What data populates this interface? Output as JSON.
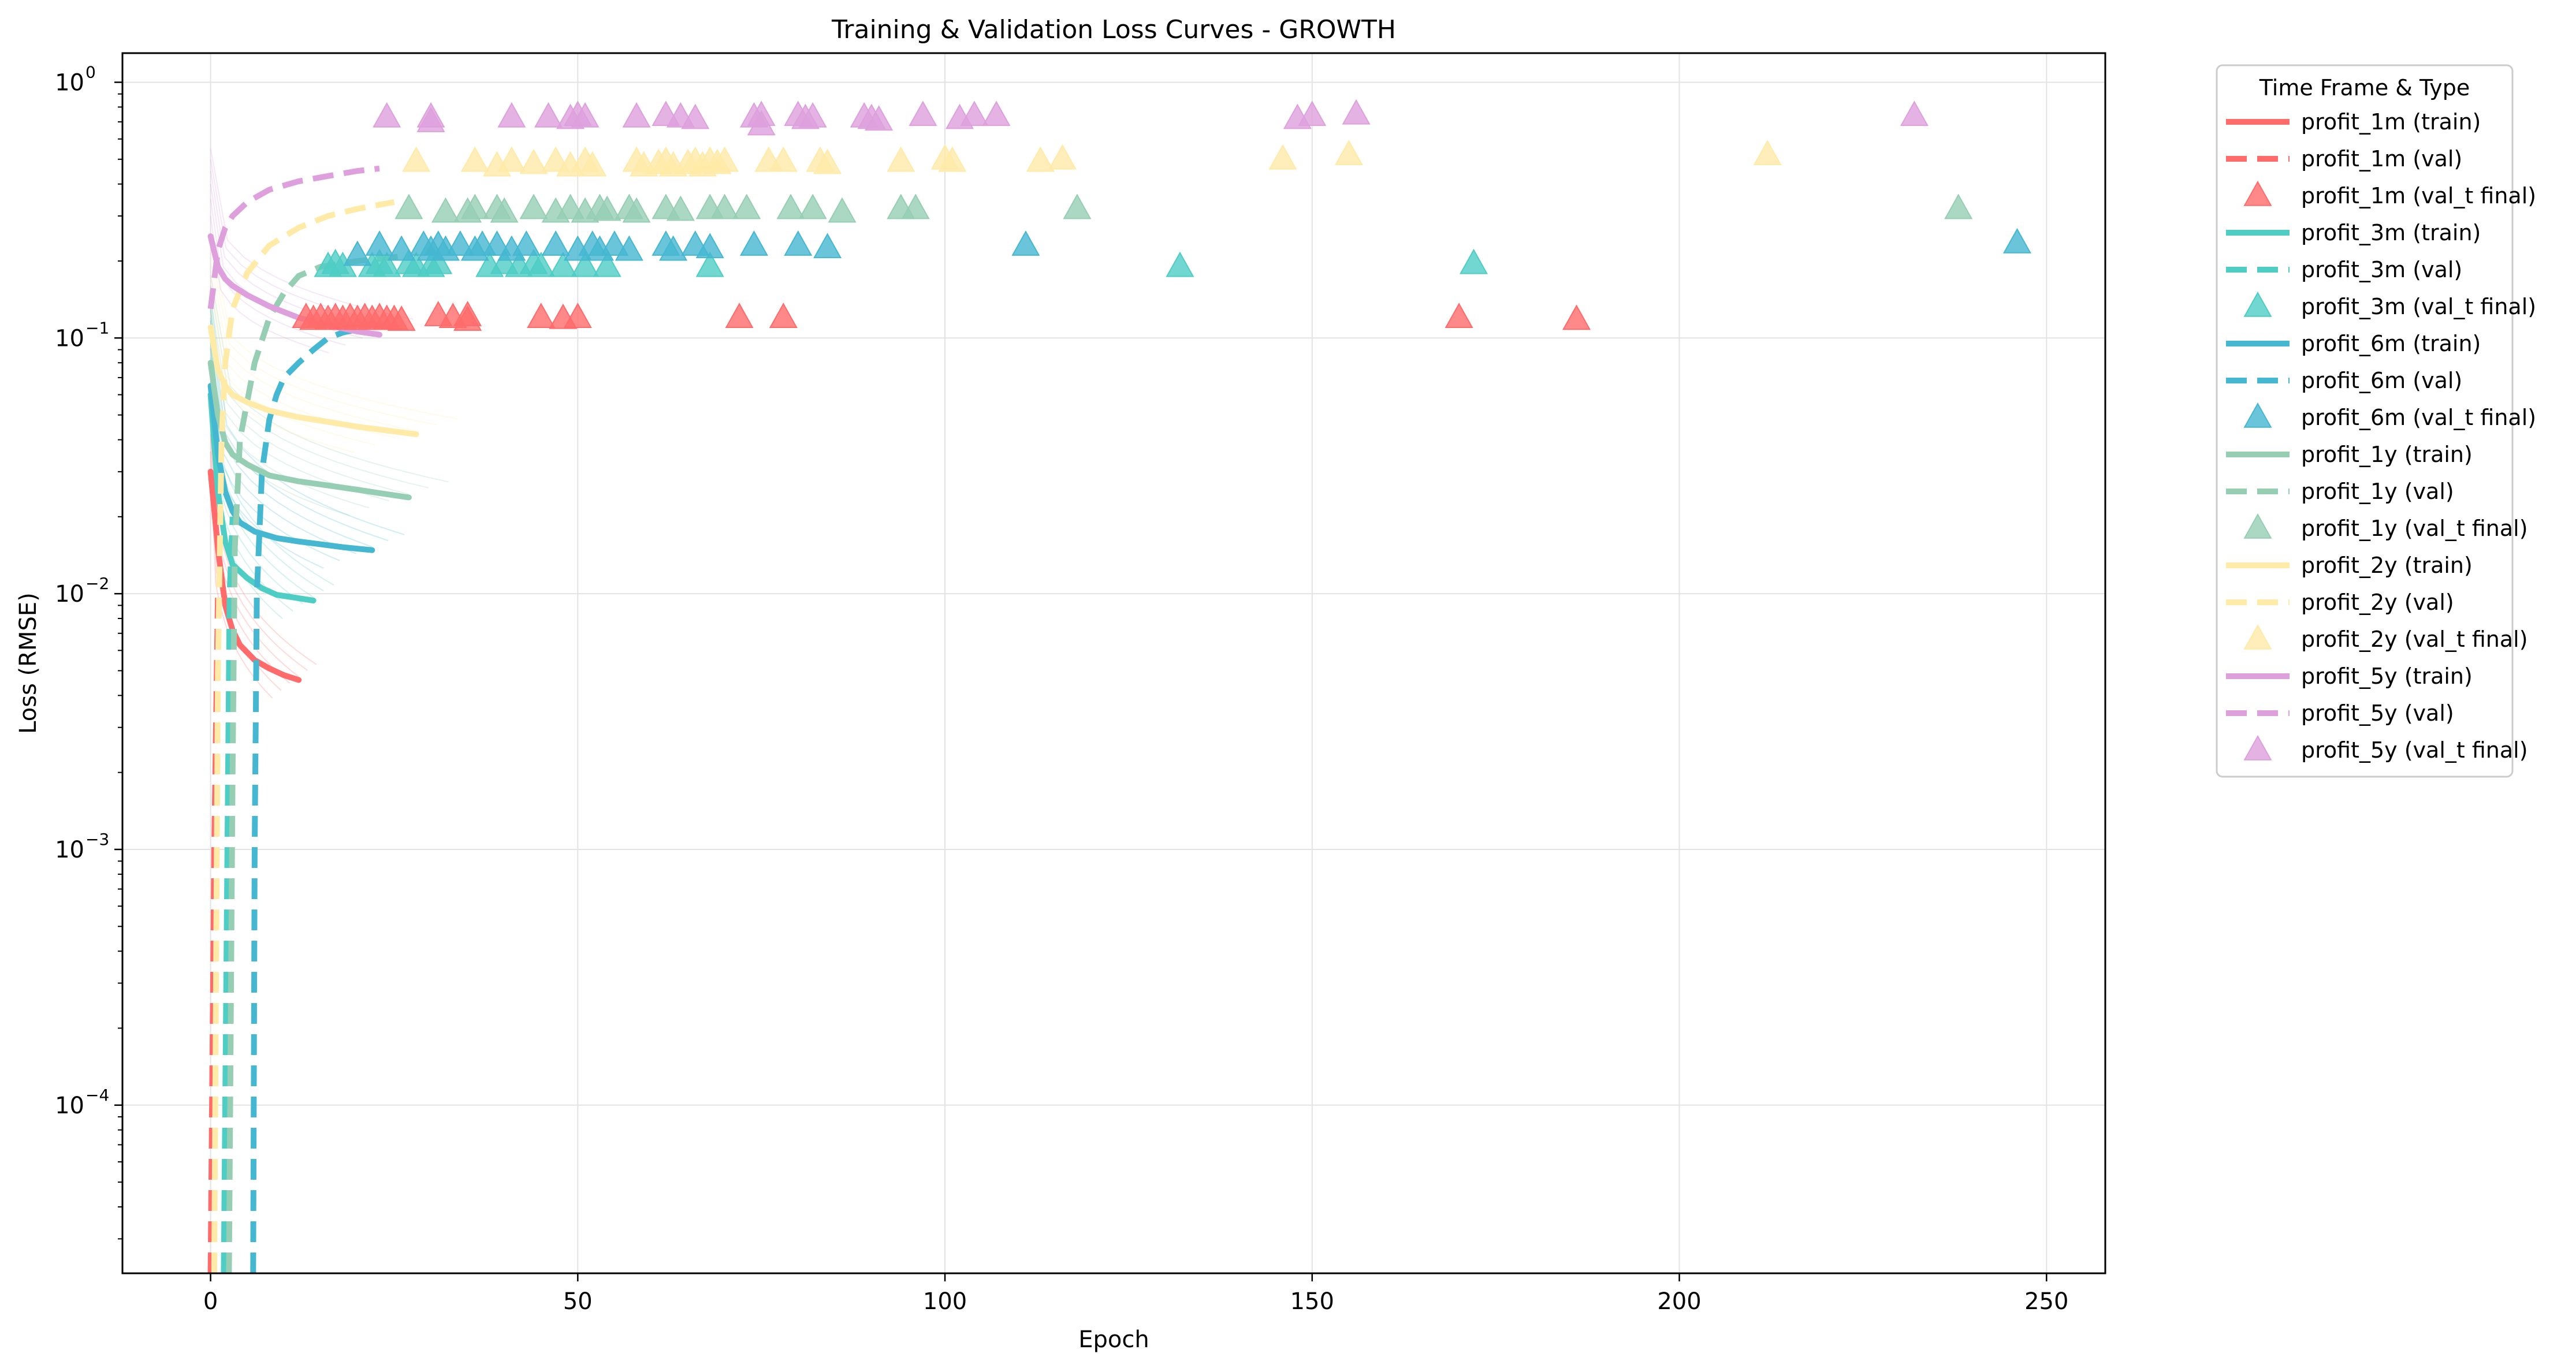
{
  "chart_data": {
    "type": "line",
    "title": "Training & Validation Loss Curves - GROWTH",
    "xlabel": "Epoch",
    "ylabel": "Loss (RMSE)",
    "xlim": [
      -12,
      258
    ],
    "ylim": [
      2.2e-05,
      1.3
    ],
    "yscale": "log",
    "grid": true,
    "x_ticks": [
      {
        "value": 0,
        "label": "0"
      },
      {
        "value": 50,
        "label": "50"
      },
      {
        "value": 100,
        "label": "100"
      },
      {
        "value": 150,
        "label": "150"
      },
      {
        "value": 200,
        "label": "200"
      },
      {
        "value": 250,
        "label": "250"
      }
    ],
    "y_ticks": [
      {
        "value": 0.0001,
        "base": "10",
        "exp": "−4"
      },
      {
        "value": 0.001,
        "base": "10",
        "exp": "−3"
      },
      {
        "value": 0.01,
        "base": "10",
        "exp": "−2"
      },
      {
        "value": 0.1,
        "base": "10",
        "exp": "−1"
      },
      {
        "value": 1,
        "base": "10",
        "exp": "0"
      }
    ],
    "legend": {
      "title": "Time Frame & Type",
      "placement": "outside-right-top",
      "entries": [
        {
          "label": "profit_1m (train)",
          "kind": "line",
          "color": "#ff6b6b"
        },
        {
          "label": "profit_1m (val)",
          "kind": "dash",
          "color": "#ff6b6b"
        },
        {
          "label": "profit_1m (val_t final)",
          "kind": "marker",
          "color": "#ff6b6b"
        },
        {
          "label": "profit_3m (train)",
          "kind": "line",
          "color": "#4ecdc4"
        },
        {
          "label": "profit_3m (val)",
          "kind": "dash",
          "color": "#4ecdc4"
        },
        {
          "label": "profit_3m (val_t final)",
          "kind": "marker",
          "color": "#4ecdc4"
        },
        {
          "label": "profit_6m (train)",
          "kind": "line",
          "color": "#45b7d1"
        },
        {
          "label": "profit_6m (val)",
          "kind": "dash",
          "color": "#45b7d1"
        },
        {
          "label": "profit_6m (val_t final)",
          "kind": "marker",
          "color": "#45b7d1"
        },
        {
          "label": "profit_1y (train)",
          "kind": "line",
          "color": "#96ceb4"
        },
        {
          "label": "profit_1y (val)",
          "kind": "dash",
          "color": "#96ceb4"
        },
        {
          "label": "profit_1y (val_t final)",
          "kind": "marker",
          "color": "#96ceb4"
        },
        {
          "label": "profit_2y (train)",
          "kind": "line",
          "color": "#ffeaa7"
        },
        {
          "label": "profit_2y (val)",
          "kind": "dash",
          "color": "#ffeaa7"
        },
        {
          "label": "profit_2y (val_t final)",
          "kind": "marker",
          "color": "#ffeaa7"
        },
        {
          "label": "profit_5y (train)",
          "kind": "line",
          "color": "#dda0dd"
        },
        {
          "label": "profit_5y (val)",
          "kind": "dash",
          "color": "#dda0dd"
        },
        {
          "label": "profit_5y (val_t final)",
          "kind": "marker",
          "color": "#dda0dd"
        }
      ]
    },
    "series": [
      {
        "id": "profit_1m",
        "color": "#ff6b6b",
        "train": {
          "x": [
            0,
            1,
            2,
            3,
            4,
            6,
            8,
            10,
            12
          ],
          "y": [
            0.03,
            0.015,
            0.009,
            0.0072,
            0.0063,
            0.0055,
            0.0051,
            0.0048,
            0.0046
          ]
        },
        "val": {
          "x": [
            0,
            0.5,
            1
          ],
          "y": [
            2.2e-05,
            0.001,
            0.01
          ]
        },
        "val_final": [
          {
            "x": 13,
            "y": 0.12
          },
          {
            "x": 14,
            "y": 0.118
          },
          {
            "x": 15,
            "y": 0.12
          },
          {
            "x": 16,
            "y": 0.118
          },
          {
            "x": 17,
            "y": 0.12
          },
          {
            "x": 18,
            "y": 0.118
          },
          {
            "x": 19,
            "y": 0.12
          },
          {
            "x": 20,
            "y": 0.118
          },
          {
            "x": 21,
            "y": 0.12
          },
          {
            "x": 22,
            "y": 0.118
          },
          {
            "x": 23,
            "y": 0.12
          },
          {
            "x": 24,
            "y": 0.118
          },
          {
            "x": 25,
            "y": 0.118
          },
          {
            "x": 26,
            "y": 0.117
          },
          {
            "x": 31,
            "y": 0.122
          },
          {
            "x": 33,
            "y": 0.12
          },
          {
            "x": 35,
            "y": 0.122
          },
          {
            "x": 35,
            "y": 0.117
          },
          {
            "x": 45,
            "y": 0.12
          },
          {
            "x": 48,
            "y": 0.119
          },
          {
            "x": 50,
            "y": 0.12
          },
          {
            "x": 72,
            "y": 0.12
          },
          {
            "x": 78,
            "y": 0.12
          },
          {
            "x": 170,
            "y": 0.12
          },
          {
            "x": 186,
            "y": 0.118
          }
        ]
      },
      {
        "id": "profit_3m",
        "color": "#4ecdc4",
        "train": {
          "x": [
            0,
            1,
            2,
            3,
            5,
            7,
            9,
            11,
            14
          ],
          "y": [
            0.06,
            0.025,
            0.016,
            0.013,
            0.0115,
            0.0105,
            0.0099,
            0.0097,
            0.0094
          ]
        },
        "val": {
          "x": [
            1.8,
            2.2,
            2.6,
            3
          ],
          "y": [
            2.2e-05,
            0.0005,
            0.01,
            0.02
          ]
        },
        "val_final": [
          {
            "x": 16,
            "y": 0.19
          },
          {
            "x": 17,
            "y": 0.195
          },
          {
            "x": 18,
            "y": 0.19
          },
          {
            "x": 22,
            "y": 0.19
          },
          {
            "x": 23,
            "y": 0.195
          },
          {
            "x": 24,
            "y": 0.19
          },
          {
            "x": 27,
            "y": 0.195
          },
          {
            "x": 28,
            "y": 0.19
          },
          {
            "x": 30,
            "y": 0.19
          },
          {
            "x": 31,
            "y": 0.195
          },
          {
            "x": 38,
            "y": 0.19
          },
          {
            "x": 40,
            "y": 0.195
          },
          {
            "x": 42,
            "y": 0.19
          },
          {
            "x": 44,
            "y": 0.195
          },
          {
            "x": 45,
            "y": 0.19
          },
          {
            "x": 48,
            "y": 0.19
          },
          {
            "x": 51,
            "y": 0.19
          },
          {
            "x": 54,
            "y": 0.19
          },
          {
            "x": 68,
            "y": 0.19
          },
          {
            "x": 132,
            "y": 0.19
          },
          {
            "x": 172,
            "y": 0.195
          }
        ]
      },
      {
        "id": "profit_6m",
        "color": "#45b7d1",
        "train": {
          "x": [
            0,
            1,
            2,
            3,
            4,
            6,
            9,
            12,
            15,
            18,
            22
          ],
          "y": [
            0.065,
            0.035,
            0.025,
            0.021,
            0.019,
            0.0175,
            0.0165,
            0.016,
            0.0156,
            0.0152,
            0.0148
          ]
        },
        "val": {
          "x": [
            5.8,
            6,
            6.3,
            7,
            8,
            9,
            10,
            12,
            14,
            16,
            18,
            20
          ],
          "y": [
            2.2e-05,
            0.001,
            0.01,
            0.03,
            0.048,
            0.06,
            0.07,
            0.08,
            0.09,
            0.1,
            0.105,
            0.108
          ]
        },
        "val_final": [
          {
            "x": 20,
            "y": 0.21
          },
          {
            "x": 23,
            "y": 0.23
          },
          {
            "x": 26,
            "y": 0.22
          },
          {
            "x": 29,
            "y": 0.23
          },
          {
            "x": 30,
            "y": 0.22
          },
          {
            "x": 31,
            "y": 0.23
          },
          {
            "x": 32,
            "y": 0.22
          },
          {
            "x": 34,
            "y": 0.23
          },
          {
            "x": 36,
            "y": 0.22
          },
          {
            "x": 37,
            "y": 0.23
          },
          {
            "x": 39,
            "y": 0.23
          },
          {
            "x": 41,
            "y": 0.22
          },
          {
            "x": 43,
            "y": 0.23
          },
          {
            "x": 47,
            "y": 0.23
          },
          {
            "x": 50,
            "y": 0.22
          },
          {
            "x": 52,
            "y": 0.23
          },
          {
            "x": 53,
            "y": 0.22
          },
          {
            "x": 55,
            "y": 0.23
          },
          {
            "x": 57,
            "y": 0.22
          },
          {
            "x": 62,
            "y": 0.23
          },
          {
            "x": 63,
            "y": 0.22
          },
          {
            "x": 66,
            "y": 0.23
          },
          {
            "x": 68,
            "y": 0.225
          },
          {
            "x": 74,
            "y": 0.23
          },
          {
            "x": 80,
            "y": 0.23
          },
          {
            "x": 84,
            "y": 0.225
          },
          {
            "x": 111,
            "y": 0.23
          },
          {
            "x": 246,
            "y": 0.235
          }
        ]
      },
      {
        "id": "profit_1y",
        "color": "#96ceb4",
        "train": {
          "x": [
            0,
            1,
            2,
            3,
            5,
            8,
            12,
            16,
            20,
            24,
            27
          ],
          "y": [
            0.08,
            0.05,
            0.039,
            0.035,
            0.032,
            0.029,
            0.0275,
            0.0265,
            0.0255,
            0.0245,
            0.0238
          ]
        },
        "val": {
          "x": [
            2.5,
            3,
            3.3,
            4,
            6,
            8,
            10,
            12,
            15,
            20,
            27
          ],
          "y": [
            2.2e-05,
            0.002,
            0.015,
            0.04,
            0.08,
            0.12,
            0.15,
            0.175,
            0.19,
            0.2,
            0.21
          ]
        },
        "val_final": [
          {
            "x": 27,
            "y": 0.32
          },
          {
            "x": 32,
            "y": 0.31
          },
          {
            "x": 35,
            "y": 0.31
          },
          {
            "x": 36,
            "y": 0.32
          },
          {
            "x": 39,
            "y": 0.32
          },
          {
            "x": 40,
            "y": 0.31
          },
          {
            "x": 44,
            "y": 0.32
          },
          {
            "x": 47,
            "y": 0.31
          },
          {
            "x": 49,
            "y": 0.32
          },
          {
            "x": 51,
            "y": 0.31
          },
          {
            "x": 53,
            "y": 0.32
          },
          {
            "x": 54,
            "y": 0.315
          },
          {
            "x": 57,
            "y": 0.32
          },
          {
            "x": 58,
            "y": 0.31
          },
          {
            "x": 62,
            "y": 0.32
          },
          {
            "x": 64,
            "y": 0.315
          },
          {
            "x": 68,
            "y": 0.32
          },
          {
            "x": 70,
            "y": 0.32
          },
          {
            "x": 73,
            "y": 0.32
          },
          {
            "x": 79,
            "y": 0.32
          },
          {
            "x": 82,
            "y": 0.32
          },
          {
            "x": 86,
            "y": 0.31
          },
          {
            "x": 94,
            "y": 0.32
          },
          {
            "x": 96,
            "y": 0.32
          },
          {
            "x": 118,
            "y": 0.32
          },
          {
            "x": 238,
            "y": 0.32
          }
        ]
      },
      {
        "id": "profit_2y",
        "color": "#ffeaa7",
        "train": {
          "x": [
            0,
            1,
            2,
            3,
            5,
            8,
            12,
            16,
            20,
            24,
            28
          ],
          "y": [
            0.11,
            0.075,
            0.065,
            0.06,
            0.056,
            0.052,
            0.049,
            0.047,
            0.045,
            0.0435,
            0.042
          ]
        },
        "val": {
          "x": [
            0.5,
            1,
            1.5,
            2,
            3,
            5,
            8,
            12,
            16,
            20,
            25
          ],
          "y": [
            2.2e-05,
            0.005,
            0.04,
            0.08,
            0.13,
            0.18,
            0.23,
            0.27,
            0.3,
            0.32,
            0.34
          ]
        },
        "val_final": [
          {
            "x": 28,
            "y": 0.49
          },
          {
            "x": 36,
            "y": 0.49
          },
          {
            "x": 39,
            "y": 0.47
          },
          {
            "x": 41,
            "y": 0.49
          },
          {
            "x": 44,
            "y": 0.48
          },
          {
            "x": 47,
            "y": 0.49
          },
          {
            "x": 49,
            "y": 0.47
          },
          {
            "x": 51,
            "y": 0.49
          },
          {
            "x": 52,
            "y": 0.47
          },
          {
            "x": 58,
            "y": 0.49
          },
          {
            "x": 59,
            "y": 0.47
          },
          {
            "x": 61,
            "y": 0.48
          },
          {
            "x": 62,
            "y": 0.49
          },
          {
            "x": 63,
            "y": 0.47
          },
          {
            "x": 65,
            "y": 0.48
          },
          {
            "x": 66,
            "y": 0.49
          },
          {
            "x": 67,
            "y": 0.47
          },
          {
            "x": 68,
            "y": 0.49
          },
          {
            "x": 69,
            "y": 0.48
          },
          {
            "x": 70,
            "y": 0.49
          },
          {
            "x": 76,
            "y": 0.49
          },
          {
            "x": 78,
            "y": 0.49
          },
          {
            "x": 83,
            "y": 0.49
          },
          {
            "x": 84,
            "y": 0.48
          },
          {
            "x": 94,
            "y": 0.49
          },
          {
            "x": 100,
            "y": 0.5
          },
          {
            "x": 101,
            "y": 0.49
          },
          {
            "x": 113,
            "y": 0.49
          },
          {
            "x": 116,
            "y": 0.5
          },
          {
            "x": 146,
            "y": 0.5
          },
          {
            "x": 155,
            "y": 0.52
          },
          {
            "x": 212,
            "y": 0.52
          }
        ]
      },
      {
        "id": "profit_5y",
        "color": "#dda0dd",
        "train": {
          "x": [
            0,
            1,
            2,
            3,
            5,
            8,
            12,
            16,
            20,
            23
          ],
          "y": [
            0.25,
            0.19,
            0.17,
            0.16,
            0.147,
            0.133,
            0.12,
            0.112,
            0.106,
            0.103
          ]
        },
        "val": {
          "x": [
            0,
            1,
            2,
            3,
            5,
            8,
            12,
            16,
            20,
            23
          ],
          "y": [
            0.13,
            0.22,
            0.27,
            0.3,
            0.34,
            0.38,
            0.41,
            0.43,
            0.45,
            0.46
          ]
        },
        "val_final": [
          {
            "x": 24,
            "y": 0.73
          },
          {
            "x": 30,
            "y": 0.73
          },
          {
            "x": 30,
            "y": 0.7
          },
          {
            "x": 41,
            "y": 0.73
          },
          {
            "x": 46,
            "y": 0.73
          },
          {
            "x": 49,
            "y": 0.72
          },
          {
            "x": 50,
            "y": 0.74
          },
          {
            "x": 51,
            "y": 0.73
          },
          {
            "x": 58,
            "y": 0.73
          },
          {
            "x": 62,
            "y": 0.74
          },
          {
            "x": 64,
            "y": 0.73
          },
          {
            "x": 66,
            "y": 0.72
          },
          {
            "x": 74,
            "y": 0.73
          },
          {
            "x": 75,
            "y": 0.74
          },
          {
            "x": 75,
            "y": 0.68
          },
          {
            "x": 80,
            "y": 0.74
          },
          {
            "x": 81,
            "y": 0.72
          },
          {
            "x": 82,
            "y": 0.73
          },
          {
            "x": 89,
            "y": 0.73
          },
          {
            "x": 90,
            "y": 0.72
          },
          {
            "x": 91,
            "y": 0.71
          },
          {
            "x": 97,
            "y": 0.74
          },
          {
            "x": 102,
            "y": 0.72
          },
          {
            "x": 104,
            "y": 0.74
          },
          {
            "x": 107,
            "y": 0.74
          },
          {
            "x": 148,
            "y": 0.72
          },
          {
            "x": 150,
            "y": 0.74
          },
          {
            "x": 156,
            "y": 0.75
          },
          {
            "x": 232,
            "y": 0.74
          }
        ]
      }
    ]
  }
}
